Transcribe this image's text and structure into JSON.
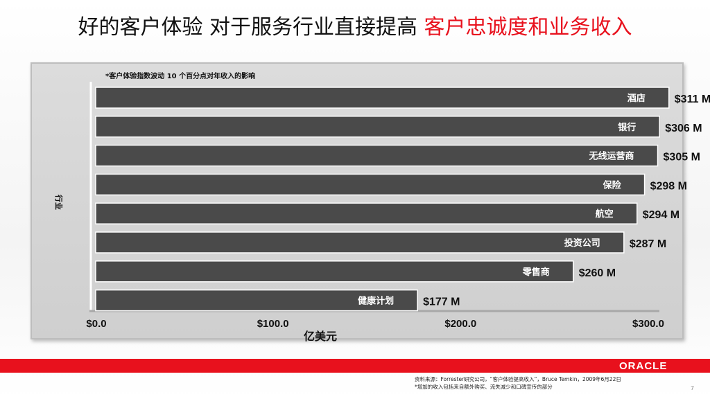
{
  "title": {
    "main": "好的客户体验 对于服务行业直接提高 ",
    "highlight": "客户忠诚度和业务收入"
  },
  "colors": {
    "accent": "#e8111d",
    "bar": "#4a4a4a",
    "panel": "#d4d4d4"
  },
  "chart_data": {
    "type": "bar",
    "orientation": "horizontal",
    "note": "*客户体验指数波动 10 个百分点对年收入的影响",
    "ylabel": "行业",
    "xlabel": "亿美元",
    "xlim": [
      0,
      300
    ],
    "x_tick_labels": [
      "$0.0",
      "$100.0",
      "$200.0",
      "$300.0"
    ],
    "x_tick_values": [
      0,
      100,
      200,
      300
    ],
    "categories": [
      "酒店",
      "银行",
      "无线运营商",
      "保险",
      "航空",
      "投资公司",
      "零售商",
      "健康计划"
    ],
    "values": [
      311,
      306,
      305,
      298,
      294,
      287,
      260,
      177
    ],
    "value_labels": [
      "$311 M",
      "$306 M",
      "$305 M",
      "$298 M",
      "$294 M",
      "$287 M",
      "$260 M",
      "$177 M"
    ]
  },
  "footer": {
    "logo": "ORACLE",
    "source": "资料来源：Forrester研究公司，“客户体验提高收入”，Bruce Temkin，2009年6月22日",
    "note": "*增加的收入包括来自额外购买、流失减少和口碑宣传的部分",
    "page": "7"
  }
}
